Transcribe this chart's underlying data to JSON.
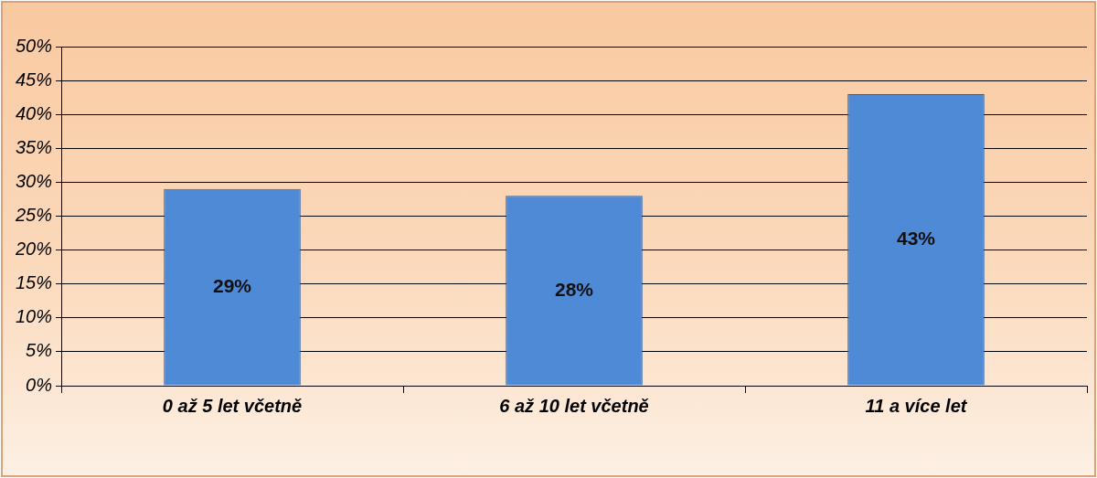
{
  "chart_data": {
    "type": "bar",
    "categories": [
      "0 až 5 let včetně",
      "6 až 10 let včetně",
      "11 a více let"
    ],
    "values": [
      29,
      28,
      43
    ],
    "color": "#4f8ad6",
    "value_labels": [
      "29%",
      "28%",
      "43%"
    ],
    "ylim": [
      0,
      50
    ],
    "yticks": [
      {
        "value": 0,
        "label": "0%"
      },
      {
        "value": 5,
        "label": "5%"
      },
      {
        "value": 10,
        "label": "10%"
      },
      {
        "value": 15,
        "label": "15%"
      },
      {
        "value": 20,
        "label": "20%"
      },
      {
        "value": 25,
        "label": "25%"
      },
      {
        "value": 30,
        "label": "30%"
      },
      {
        "value": 35,
        "label": "35%"
      },
      {
        "value": 40,
        "label": "40%"
      },
      {
        "value": 45,
        "label": "45%"
      },
      {
        "value": 50,
        "label": "50%"
      }
    ],
    "grid": "y",
    "legend": false
  }
}
